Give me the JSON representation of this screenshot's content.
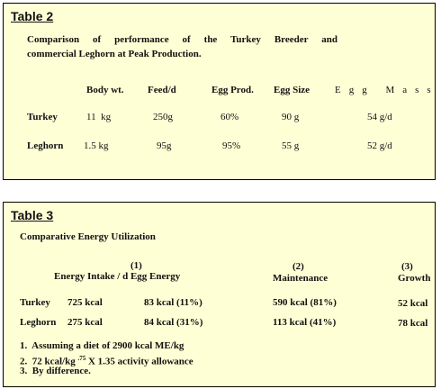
{
  "table2": {
    "label": "Table 2",
    "caption_lines": [
      "Comparison of performance of the Turkey Breeder and",
      "commercial Leghorn at Peak Production."
    ],
    "headers": [
      "Body wt.",
      "Feed/d",
      "Egg Prod.",
      "Egg Size",
      "Egg Mass"
    ],
    "rows": [
      [
        "Turkey",
        "11  kg",
        "250g",
        "60%",
        "90 g",
        "54 g/d"
      ],
      [
        "Leghorn",
        "1.5 kg",
        "95g",
        "95%",
        "55 g",
        "52 g/d"
      ]
    ]
  },
  "table3": {
    "label": "Table 3",
    "title": "Comparative Energy Utilization",
    "headers": [
      {
        "num": "(1)",
        "text": "Energy Intake / d Egg Energy"
      },
      {
        "num": "(2)",
        "text": "Maintenance"
      },
      {
        "num": "(3)",
        "text": "Growth"
      }
    ],
    "rows": [
      [
        "Turkey",
        "725 kcal",
        "83 kcal (11%)",
        "590 kcal (81%)",
        "52 kcal"
      ],
      [
        "Leghorn",
        "275 kcal",
        "84 kcal (31%)",
        "113 kcal (41%)",
        "78 kcal"
      ]
    ],
    "notes": [
      "1.  Assuming a diet of 2900 kcal ME/kg",
      {
        "before": "2.  72 kcal/kg",
        "sup": ".75",
        "after": "X 1.35 activity allowance"
      },
      "3.  By difference."
    ]
  }
}
